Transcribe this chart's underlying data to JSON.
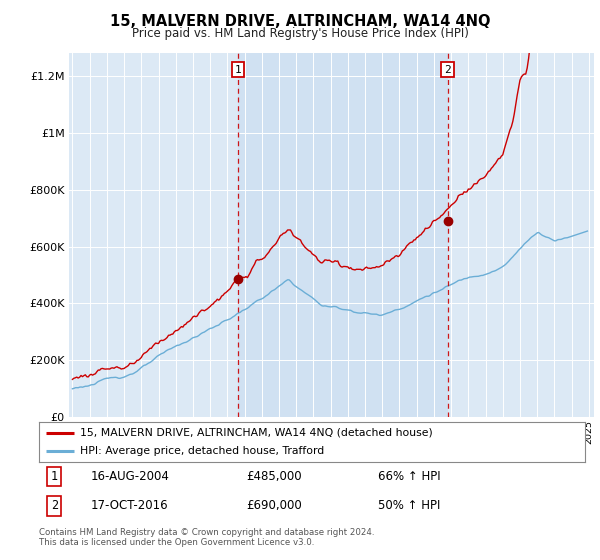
{
  "title": "15, MALVERN DRIVE, ALTRINCHAM, WA14 4NQ",
  "subtitle": "Price paid vs. HM Land Registry's House Price Index (HPI)",
  "background_color": "#ffffff",
  "plot_bg_color": "#dce9f5",
  "shade_color": "#c8dcf0",
  "ylabel_ticks": [
    "£0",
    "£200K",
    "£400K",
    "£600K",
    "£800K",
    "£1M",
    "£1.2M"
  ],
  "ytick_values": [
    0,
    200000,
    400000,
    600000,
    800000,
    1000000,
    1200000
  ],
  "ylim": [
    0,
    1280000
  ],
  "xlim_start": 1994.8,
  "xlim_end": 2025.3,
  "sale1_date": 2004.62,
  "sale1_price": 485000,
  "sale1_date_str": "16-AUG-2004",
  "sale1_hpi": "66% ↑ HPI",
  "sale2_date": 2016.79,
  "sale2_price": 690000,
  "sale2_date_str": "17-OCT-2016",
  "sale2_hpi": "50% ↑ HPI",
  "legend_line1": "15, MALVERN DRIVE, ALTRINCHAM, WA14 4NQ (detached house)",
  "legend_line2": "HPI: Average price, detached house, Trafford",
  "footer": "Contains HM Land Registry data © Crown copyright and database right 2024.\nThis data is licensed under the Open Government Licence v3.0.",
  "line_color_red": "#cc0000",
  "line_color_blue": "#6baed6",
  "sale_marker_color": "#990000"
}
